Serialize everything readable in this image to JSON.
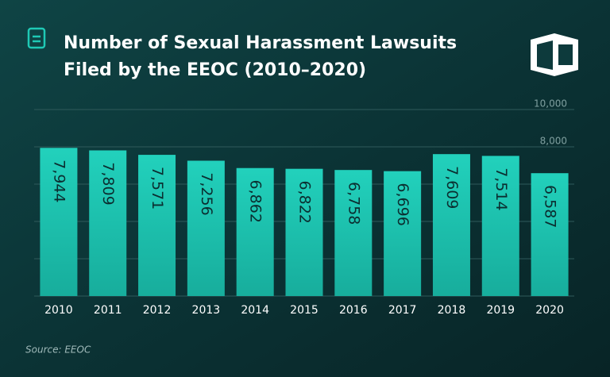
{
  "chart_data": {
    "type": "bar",
    "title": [
      "Number of Sexual Harassment Lawsuits",
      "Filed by the EEOC (2010–2020)"
    ],
    "source": "Source: EEOC",
    "categories": [
      "2010",
      "2011",
      "2012",
      "2013",
      "2014",
      "2015",
      "2016",
      "2017",
      "2018",
      "2019",
      "2020"
    ],
    "values": [
      7944,
      7809,
      7571,
      7256,
      6862,
      6822,
      6758,
      6696,
      7609,
      7514,
      6587
    ],
    "value_labels": [
      "7,944",
      "7,809",
      "7,571",
      "7,256",
      "6,862",
      "6,822",
      "6,758",
      "6,696",
      "7,609",
      "7,514",
      "6,587"
    ],
    "color": "#1fc9b5",
    "ylim": [
      0,
      10000
    ],
    "yticks": [
      {
        "value": 2000,
        "label": null
      },
      {
        "value": 4000,
        "label": null
      },
      {
        "value": 6000,
        "label": null
      },
      {
        "value": 8000,
        "label": "8,000"
      },
      {
        "value": 10000,
        "label": "10,000"
      }
    ],
    "grid": true
  }
}
